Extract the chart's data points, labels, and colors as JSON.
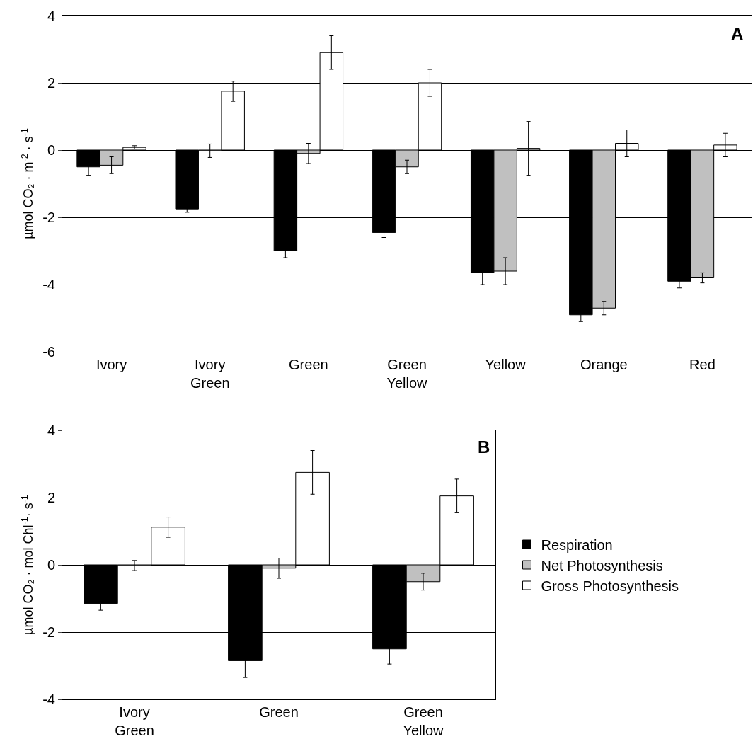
{
  "chart_data": [
    {
      "type": "bar",
      "ylabel": "µmol CO₂ · m$^{-2}$ · s$^{-1}$",
      "categories": [
        "Ivory",
        "Ivory\nGreen",
        "Green",
        "Green\nYellow",
        "Yellow",
        "Orange",
        "Red"
      ],
      "ylim": [
        -6,
        4
      ],
      "yticks": [
        -6,
        -4,
        -2,
        0,
        2,
        4
      ],
      "grid": "y",
      "legend": false,
      "annotations": [
        "A"
      ],
      "series": [
        {
          "color": "#000000",
          "values": [
            -0.5,
            -1.75,
            -3.0,
            -2.45,
            -3.65,
            -4.9,
            -3.9
          ],
          "errors": [
            0.25,
            0.1,
            0.2,
            0.15,
            0.35,
            0.2,
            0.2
          ]
        },
        {
          "color": "#c0c0c0",
          "values": [
            -0.45,
            -0.02,
            -0.1,
            -0.5,
            -3.6,
            -4.7,
            -3.8
          ],
          "errors": [
            0.25,
            0.2,
            0.3,
            0.2,
            0.4,
            0.2,
            0.15
          ]
        },
        {
          "color": "#ffffff",
          "values": [
            0.08,
            1.75,
            2.9,
            2.0,
            0.05,
            0.2,
            0.15
          ],
          "errors": [
            0.05,
            0.3,
            0.5,
            0.4,
            0.8,
            0.4,
            0.35
          ]
        }
      ]
    },
    {
      "type": "bar",
      "ylabel": "µmol CO₂ · mol Chl$^{-1}$· s$^{-1}$",
      "categories": [
        "Ivory\nGreen",
        "Green",
        "Green\nYellow"
      ],
      "ylim": [
        -4,
        4
      ],
      "yticks": [
        -4,
        -2,
        0,
        2,
        4
      ],
      "grid": "y",
      "legend": "right",
      "annotations": [
        "B"
      ],
      "series": [
        {
          "name": "Respiration",
          "color": "#000000",
          "values": [
            -1.15,
            -2.85,
            -2.5
          ],
          "errors": [
            0.2,
            0.5,
            0.45
          ]
        },
        {
          "name": "Net Photosynthesis",
          "color": "#c0c0c0",
          "values": [
            -0.02,
            -0.1,
            -0.5
          ],
          "errors": [
            0.15,
            0.3,
            0.25
          ]
        },
        {
          "name": "Gross Photosynthesis",
          "color": "#ffffff",
          "values": [
            1.12,
            2.75,
            2.05
          ],
          "errors": [
            0.3,
            0.65,
            0.5
          ]
        }
      ]
    }
  ]
}
